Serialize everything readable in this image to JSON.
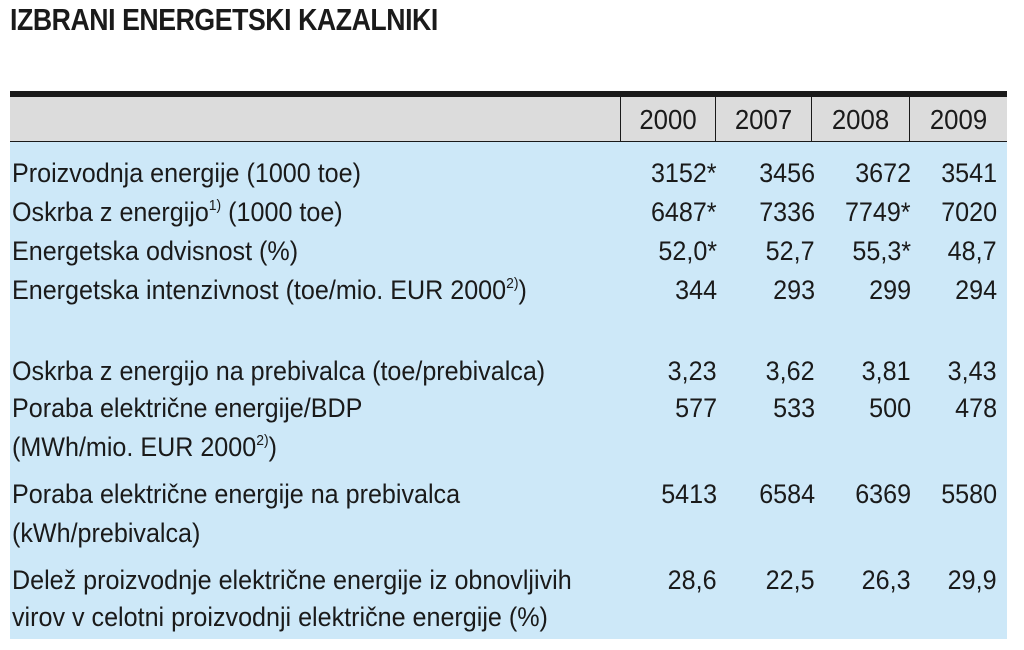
{
  "title": "IZBRANI ENERGETSKI KAZALNIKI",
  "years": [
    "2000",
    "2007",
    "2008",
    "2009"
  ],
  "superscripts": {
    "one": "1)",
    "two": "2)"
  },
  "rows": [
    {
      "label": "Proizvodnja energije (1000 toe)",
      "values": [
        "3152*",
        "3456",
        "3672",
        "3541"
      ]
    },
    {
      "label_a": "Oskrba z energijo",
      "label_b": " (1000 toe)",
      "values": [
        "6487*",
        "7336",
        "7749*",
        "7020"
      ]
    },
    {
      "label": "Energetska odvisnost (%)",
      "values": [
        "52,0*",
        "52,7",
        "55,3*",
        "48,7"
      ]
    },
    {
      "label_a": "Energetska intenzivnost (toe/mio. EUR 2000",
      "label_b": ")",
      "values": [
        "344",
        "293",
        "299",
        "294"
      ]
    },
    {
      "label": "Oskrba z energijo na prebivalca (toe/prebivalca)",
      "values": [
        "3,23",
        "3,62",
        "3,81",
        "3,43"
      ]
    },
    {
      "label_line1": "Poraba električne energije/BDP",
      "label_line2_a": "(MWh/mio. EUR 2000",
      "label_line2_b": ")",
      "values": [
        "577",
        "533",
        "500",
        "478"
      ]
    },
    {
      "label_line1": "Poraba električne energije na prebivalca",
      "label_line2": "(kWh/prebivalca)",
      "values": [
        "5413",
        "6584",
        "6369",
        "5580"
      ]
    },
    {
      "label_line1": "Delež proizvodnje električne energije iz obnovljivih",
      "label_line2": "virov v celotni proizvodnji električne energije (%)",
      "values": [
        "28,6",
        "22,5",
        "26,3",
        "29,9"
      ]
    }
  ]
}
